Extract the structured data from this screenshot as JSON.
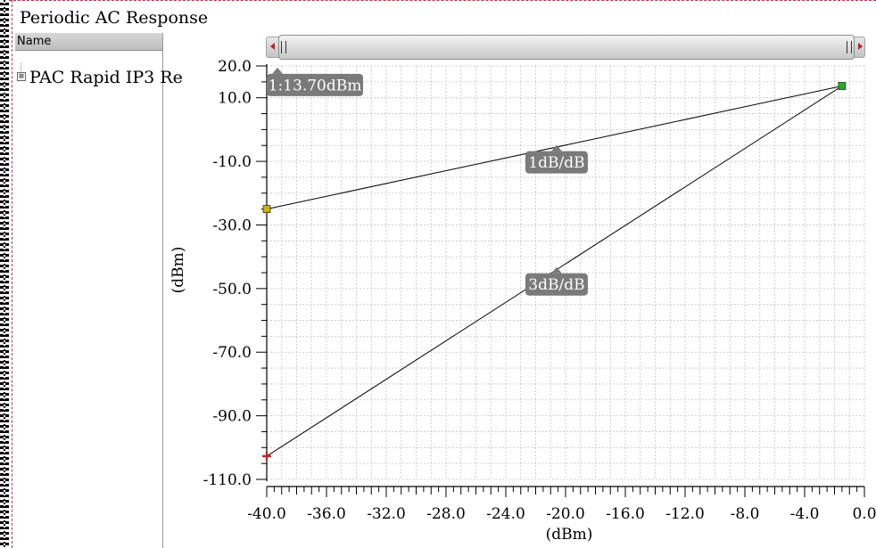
{
  "window": {
    "title": "Periodic AC Response"
  },
  "tree": {
    "header": "Name",
    "items": [
      {
        "label": "PAC Rapid IP3 Re",
        "expander": "⊞"
      }
    ]
  },
  "annotations": {
    "marker_label": "1:13.70dBm",
    "slope_upper": "1dB/dB",
    "slope_lower": "3dB/dB"
  },
  "chart_data": {
    "type": "line",
    "title": "",
    "xlabel": "(dBm)",
    "ylabel": "(dBm)",
    "xlim": [
      -40,
      0
    ],
    "ylim": [
      -110,
      20
    ],
    "x_ticks": [
      "-40.0",
      "-36.0",
      "-32.0",
      "-28.0",
      "-24.0",
      "-20.0",
      "-16.0",
      "-12.0",
      "-8.0",
      "-4.0",
      "0.0"
    ],
    "y_ticks": [
      "20.0",
      "10.0",
      "-10.0",
      "-30.0",
      "-50.0",
      "-70.0",
      "-90.0",
      "-110.0"
    ],
    "grid": true,
    "series": [
      {
        "points": [
          [
            -40.0,
            -25.0
          ],
          [
            -1.5,
            13.7
          ]
        ],
        "color": "#000000"
      },
      {
        "points": [
          [
            -40.0,
            -102.7
          ],
          [
            -1.5,
            13.7
          ]
        ],
        "color": "#000000"
      }
    ],
    "markers": [
      {
        "x": -40.0,
        "y": -25.0,
        "shape": "square",
        "color": "#c8b400"
      },
      {
        "x": -1.5,
        "y": 13.7,
        "shape": "square",
        "color": "#22aa22"
      },
      {
        "x": -40.0,
        "y": -102.7,
        "shape": "cross",
        "color": "#cc2222"
      }
    ],
    "tooltips": [
      {
        "key": "annotations.marker_label",
        "x": -40.0,
        "y": 14.0,
        "anchor": "start"
      },
      {
        "key": "annotations.slope_upper",
        "x": -20.6,
        "y": -10.3,
        "anchor": "middle"
      },
      {
        "key": "annotations.slope_lower",
        "x": -20.6,
        "y": -48.7,
        "anchor": "middle"
      }
    ]
  }
}
